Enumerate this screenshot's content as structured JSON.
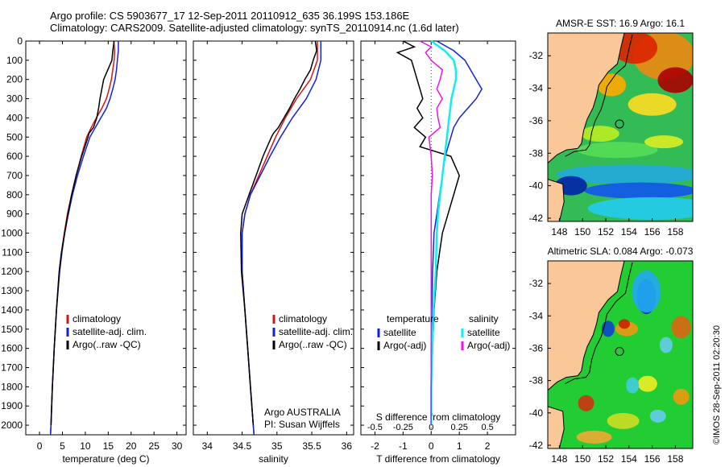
{
  "header": {
    "line1": "Argo profile: CS 5903677_17 12-Sep-2011 20110912_635 36.199S 153.186E",
    "line2": "Climatology: CARS2009. Satellite-adjusted climatology: synTS_20110914.nc (1.6d later)"
  },
  "side_text": "©IMOS 28-Sep-2011 02:20:30",
  "colors": {
    "climatology": "#dd1111",
    "satellite": "#1122dd",
    "argo": "#000000",
    "sal_satellite": "#11eeee",
    "sal_argo": "#ee11ee"
  },
  "chart_data": [
    {
      "type": "line",
      "xlabel": "temperature (deg C)",
      "ylabel": "",
      "xlim": [
        -3,
        32
      ],
      "ylim": [
        2050,
        0
      ],
      "xticks": [
        "0",
        "5",
        "10",
        "15",
        "20",
        "25",
        "30"
      ],
      "yticks": [
        "0",
        "100",
        "200",
        "300",
        "400",
        "500",
        "600",
        "700",
        "800",
        "900",
        "1000",
        "1100",
        "1200",
        "1300",
        "1400",
        "1500",
        "1600",
        "1700",
        "1800",
        "1900",
        "2000"
      ],
      "legend": [
        "climatology",
        "satellite-adj. clim.",
        "Argo(..raw -QC)"
      ],
      "series": [
        {
          "name": "climatology",
          "depth": [
            0,
            50,
            100,
            150,
            200,
            250,
            300,
            350,
            400,
            450,
            500,
            600,
            700,
            800,
            900,
            1000,
            1100,
            1200,
            1400,
            1600,
            1800,
            2000,
            2050
          ],
          "values": [
            16.2,
            16.4,
            16.3,
            16.0,
            15.7,
            15.2,
            14.6,
            13.6,
            12.4,
            11.3,
            10.3,
            9.1,
            8.0,
            7.0,
            6.1,
            5.4,
            4.8,
            4.3,
            3.7,
            3.2,
            2.8,
            2.5,
            2.4
          ]
        },
        {
          "name": "satellite-adj. clim.",
          "depth": [
            0,
            50,
            100,
            150,
            200,
            250,
            300,
            350,
            400,
            450,
            500,
            600,
            700,
            800,
            900,
            1000,
            1100,
            1200,
            1400,
            1600,
            1800,
            2000,
            2050
          ],
          "values": [
            17.2,
            17.2,
            17.0,
            16.8,
            16.5,
            16.0,
            15.4,
            14.6,
            13.4,
            12.2,
            11.0,
            9.6,
            8.3,
            7.2,
            6.3,
            5.5,
            4.9,
            4.4,
            3.7,
            3.2,
            2.8,
            2.5,
            2.4
          ]
        },
        {
          "name": "Argo(..raw -QC)",
          "depth": [
            0,
            50,
            100,
            150,
            200,
            250,
            300,
            350,
            400,
            450,
            480,
            500,
            600,
            700,
            800,
            900,
            1000,
            1100,
            1200,
            1400,
            1600,
            1800,
            2000
          ],
          "values": [
            16.3,
            16.0,
            15.8,
            14.9,
            14.0,
            13.6,
            13.2,
            12.9,
            12.5,
            11.8,
            10.8,
            10.6,
            9.2,
            8.0,
            7.0,
            6.2,
            5.5,
            4.8,
            4.3,
            3.7,
            3.2,
            2.8,
            2.5
          ]
        }
      ]
    },
    {
      "type": "line",
      "xlabel": "salinity",
      "ylabel": "",
      "xlim": [
        33.8,
        36.1
      ],
      "ylim": [
        2050,
        0
      ],
      "xticks": [
        "34",
        "34.5",
        "35",
        "35.5",
        "36"
      ],
      "legend": [
        "climatology",
        "satellite-adj. clim.",
        "Argo(..raw -QC)"
      ],
      "annotation": [
        "Argo AUSTRALIA",
        "PI: Susan Wijffels"
      ],
      "series": [
        {
          "name": "climatology",
          "depth": [
            0,
            100,
            200,
            300,
            400,
            500,
            600,
            700,
            800,
            900,
            1000,
            1200,
            1400,
            1600,
            1800,
            2000,
            2050
          ],
          "values": [
            35.58,
            35.58,
            35.48,
            35.28,
            35.12,
            34.98,
            34.86,
            34.74,
            34.62,
            34.54,
            34.5,
            34.5,
            34.54,
            34.58,
            34.62,
            34.66,
            34.67
          ]
        },
        {
          "name": "satellite-adj. clim.",
          "depth": [
            0,
            100,
            200,
            300,
            400,
            500,
            600,
            700,
            800,
            900,
            1000,
            1200,
            1400,
            1600,
            1800,
            2000,
            2050
          ],
          "values": [
            35.63,
            35.63,
            35.56,
            35.42,
            35.22,
            35.05,
            34.9,
            34.76,
            34.62,
            34.54,
            34.5,
            34.5,
            34.54,
            34.58,
            34.62,
            34.66,
            34.67
          ]
        },
        {
          "name": "Argo(..raw -QC)",
          "depth": [
            0,
            50,
            100,
            150,
            200,
            250,
            300,
            350,
            400,
            450,
            480,
            500,
            600,
            700,
            800,
            900,
            1000,
            1200,
            1400,
            1600,
            1800,
            2000
          ],
          "values": [
            35.55,
            35.57,
            35.52,
            35.48,
            35.4,
            35.33,
            35.25,
            35.18,
            35.1,
            35.02,
            34.95,
            34.92,
            34.8,
            34.7,
            34.6,
            34.5,
            34.48,
            34.49,
            34.54,
            34.58,
            34.62,
            34.66
          ]
        }
      ]
    },
    {
      "type": "line",
      "xlabel": "T difference from climatology",
      "xlabel_top": "S difference from climatology",
      "xlim": [
        -2.5,
        3
      ],
      "ylim": [
        2050,
        0
      ],
      "xticks": [
        "-2",
        "-1",
        "0",
        "1",
        "2"
      ],
      "xticks_top": [
        "-0.5",
        "-0.25",
        "0",
        "0.25",
        "0.5"
      ],
      "legend_left_header": "temperature",
      "legend_right_header": "salinity",
      "legend_left": [
        "satellite",
        "Argo(-adj)"
      ],
      "legend_right": [
        "satellite",
        "Argo(-adj)"
      ],
      "series": [
        {
          "name": "temperature satellite",
          "depth": [
            0,
            50,
            100,
            150,
            200,
            250,
            300,
            350,
            400,
            450,
            500,
            600,
            700,
            800,
            900,
            1000,
            1200,
            1400,
            1600,
            1800,
            2000
          ],
          "values": [
            0.2,
            0.8,
            1.2,
            1.4,
            1.6,
            1.8,
            1.6,
            1.3,
            1.0,
            0.8,
            0.7,
            0.5,
            0.4,
            0.3,
            0.2,
            0.1,
            0.05,
            0.02,
            0.0,
            0.0,
            0.0
          ]
        },
        {
          "name": "temperature Argo(-adj)",
          "depth": [
            0,
            30,
            60,
            100,
            150,
            200,
            250,
            300,
            350,
            400,
            450,
            500,
            550,
            600,
            700,
            800,
            900,
            1000,
            1100,
            1200,
            1400,
            1600,
            1800,
            2000
          ],
          "values": [
            -1.0,
            -0.6,
            -1.2,
            -0.7,
            -0.6,
            -0.5,
            -0.4,
            -0.3,
            -0.5,
            -0.3,
            -0.6,
            -0.2,
            -0.4,
            0.7,
            1.0,
            0.8,
            0.6,
            0.4,
            0.3,
            0.2,
            0.1,
            0.05,
            0.0,
            0.0
          ]
        },
        {
          "name": "salinity satellite",
          "depth": [
            0,
            50,
            100,
            150,
            200,
            250,
            300,
            400,
            500,
            600,
            700,
            800,
            900,
            1000,
            1200,
            1400,
            1600,
            1800,
            2000
          ],
          "values": [
            0.0,
            0.12,
            0.2,
            0.22,
            0.22,
            0.2,
            0.18,
            0.16,
            0.14,
            0.12,
            0.1,
            0.08,
            0.06,
            0.05,
            0.04,
            0.02,
            0.01,
            0.0,
            0.0
          ]
        },
        {
          "name": "salinity Argo(-adj)",
          "depth": [
            0,
            30,
            60,
            100,
            150,
            200,
            250,
            300,
            350,
            400,
            450,
            500,
            600,
            700,
            800,
            900,
            1000,
            1200,
            1400,
            1600,
            1800,
            2000
          ],
          "values": [
            -0.1,
            0.0,
            -0.05,
            0.0,
            0.1,
            0.08,
            0.05,
            0.1,
            0.05,
            0.06,
            0.08,
            -0.02,
            0.0,
            0.01,
            0.0,
            0.0,
            0.0,
            0.0,
            0.0,
            0.0,
            0.0,
            0.0
          ]
        }
      ]
    },
    {
      "type": "heatmap",
      "title": "AMSR-E SST: 16.9 Argo: 16.1",
      "xlim": [
        147,
        159.5
      ],
      "ylim": [
        -42.2,
        -30.6
      ],
      "xticks": [
        "148",
        "150",
        "152",
        "154",
        "156",
        "158"
      ],
      "yticks": [
        "-32",
        "-34",
        "-36",
        "-38",
        "-40",
        "-42"
      ],
      "marker": {
        "lon": 153.186,
        "lat": -36.199
      }
    },
    {
      "type": "heatmap",
      "title": "Altimetric SLA: 0.084 Argo: -0.073",
      "xlim": [
        147,
        159.5
      ],
      "ylim": [
        -42.2,
        -30.6
      ],
      "xticks": [
        "148",
        "150",
        "152",
        "154",
        "156",
        "158"
      ],
      "yticks": [
        "-32",
        "-34",
        "-36",
        "-38",
        "-40",
        "-42"
      ],
      "marker": {
        "lon": 153.186,
        "lat": -36.199
      }
    }
  ]
}
